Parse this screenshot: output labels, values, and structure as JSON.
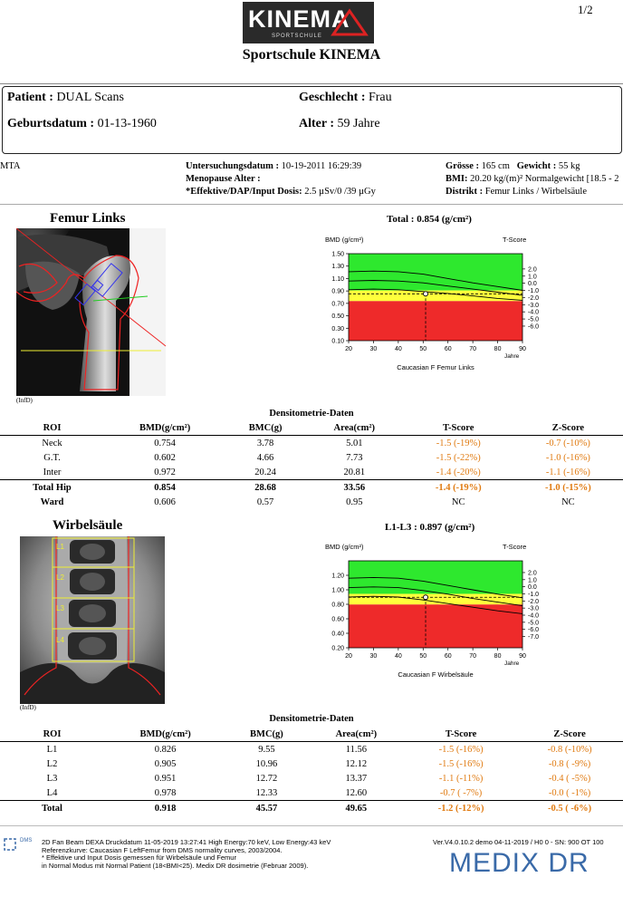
{
  "header": {
    "logo_text": "KINEMA",
    "logo_sub": "SPORTSCHULE",
    "page_num": "1/2",
    "title": "Sportschule KINEMA"
  },
  "patient": {
    "name_label": "Patient :",
    "name_value": "DUAL Scans",
    "sex_label": "Geschlecht :",
    "sex_value": "Frau",
    "dob_label": "Geburtsdatum :",
    "dob_value": "01-13-1960",
    "age_label": "Alter :",
    "age_value": "59 Jahre"
  },
  "exam": {
    "operator": "MTA",
    "date_label": "Untersuchungsdatum :",
    "date_value": "10-19-2011 16:29:39",
    "menopause_label": "Menopause Alter :",
    "dose_label": "*Effektive/DAP/Input Dosis:",
    "dose_value": "2.5 µSv/0 /39 µGy",
    "height_label": "Grösse :",
    "height_value": "165 cm",
    "weight_label": "Gewicht :",
    "weight_value": "55 kg",
    "bmi_label": "BMI:",
    "bmi_value": "20.20 kg/(m)² Normalgewicht [18.5 - 2",
    "district_label": "Distrikt :",
    "district_value": "Femur Links / Wirbelsäule"
  },
  "femur": {
    "section_title": "Femur Links",
    "image_label": "(InfD)",
    "total_label": "Total :",
    "total_value": "0.854 (g/cm²)",
    "table_title": "Densitometrie-Daten",
    "columns": [
      "ROI",
      "BMD(g/cm²)",
      "BMC(g)",
      "Area(cm²)",
      "T-Score",
      "Z-Score"
    ],
    "rows": [
      [
        "Neck",
        "0.754",
        "3.78",
        "5.01",
        "-1.5 (-19%)",
        "-0.7 (-10%)"
      ],
      [
        "G.T.",
        "0.602",
        "4.66",
        "7.73",
        "-1.5 (-22%)",
        "-1.0 (-16%)"
      ],
      [
        "Inter",
        "0.972",
        "20.24",
        "20.81",
        "-1.4 (-20%)",
        "-1.1 (-16%)"
      ]
    ],
    "total_row": [
      "Total Hip",
      "0.854",
      "28.68",
      "33.56",
      "-1.4 (-19%)",
      "-1.0 (-15%)"
    ],
    "ward_row": [
      "Ward",
      "0.606",
      "0.57",
      "0.95",
      "NC",
      "NC"
    ]
  },
  "spine": {
    "section_title": "Wirbelsäule",
    "image_label": "(InfD)",
    "vertebrae": [
      "L1",
      "L2",
      "L3",
      "L4"
    ],
    "total_label": "L1-L3 :",
    "total_value": "0.897 (g/cm²)",
    "table_title": "Densitometrie-Daten",
    "columns": [
      "ROI",
      "BMD(g/cm²)",
      "BMC(g)",
      "Area(cm²)",
      "T-Score",
      "Z-Score"
    ],
    "rows": [
      [
        "L1",
        "0.826",
        "9.55",
        "11.56",
        "-1.5 (-16%)",
        "-0.8 (-10%)"
      ],
      [
        "L2",
        "0.905",
        "10.96",
        "12.12",
        "-1.5 (-16%)",
        "-0.8 ( -9%)"
      ],
      [
        "L3",
        "0.951",
        "12.72",
        "13.37",
        "-1.1 (-11%)",
        "-0.4 ( -5%)"
      ],
      [
        "L4",
        "0.978",
        "12.33",
        "12.60",
        "-0.7 ( -7%)",
        "-0.0 ( -1%)"
      ]
    ],
    "total_row": [
      "Total",
      "0.918",
      "45.57",
      "49.65",
      "-1.2 (-12%)",
      "-0.5 ( -6%)"
    ]
  },
  "chart_data": [
    {
      "type": "area",
      "title": "Total : 0.854 (g/cm²)",
      "ylabel": "BMD (g/cm²)",
      "y2label": "T-Score",
      "xlabel": "Jahre",
      "caption": "Caucasian F Femur Links",
      "x_ticks": [
        20,
        30,
        40,
        50,
        60,
        70,
        80,
        90
      ],
      "y_ticks": [
        "1.50",
        "1.30",
        "1.10",
        "0.90",
        "0.70",
        "0.50",
        "0.30",
        "0.10"
      ],
      "ylim": [
        0.1,
        1.5
      ],
      "xlim": [
        20,
        90
      ],
      "t_ticks": [
        "2.0",
        "1.0",
        "0.0",
        "-1.0",
        "-2.0",
        "-3.0",
        "-4.0",
        "-5.0",
        "-6.0"
      ],
      "t_values": [
        2,
        1,
        0,
        -1,
        -2,
        -3,
        -4,
        -5,
        -6
      ],
      "t_zero_bmd": 1.024,
      "t_sd": 0.115,
      "zone_green_min": 0.909,
      "zone_yellow_min": 0.737,
      "patient_point": {
        "x": 51,
        "y": 0.854
      },
      "curves": {
        "x": [
          20,
          30,
          40,
          50,
          60,
          70,
          80,
          90
        ],
        "upper": [
          1.21,
          1.22,
          1.21,
          1.17,
          1.1,
          1.03,
          0.97,
          0.91
        ],
        "mean": [
          1.06,
          1.07,
          1.06,
          1.03,
          0.98,
          0.93,
          0.88,
          0.83
        ],
        "lower": [
          0.92,
          0.93,
          0.92,
          0.89,
          0.86,
          0.82,
          0.78,
          0.75
        ]
      },
      "colors": {
        "green": "#2ee82e",
        "yellow": "#ffff3c",
        "red": "#ee2a2a"
      }
    },
    {
      "type": "area",
      "title": "L1-L3 : 0.897 (g/cm²)",
      "ylabel": "BMD (g/cm²)",
      "y2label": "T-Score",
      "xlabel": "Jahre",
      "caption": "Caucasian F Wirbelsäule",
      "x_ticks": [
        20,
        30,
        40,
        50,
        60,
        70,
        80,
        90
      ],
      "y_ticks": [
        "1.20",
        "1.00",
        "0.80",
        "0.60",
        "0.40",
        "0.20"
      ],
      "ylim": [
        0.2,
        1.4
      ],
      "xlim": [
        20,
        90
      ],
      "t_ticks": [
        "2.0",
        "1.0",
        "0.0",
        "-1.0",
        "-2.0",
        "-3.0",
        "-4.0",
        "-5.0",
        "-6.0",
        "-7.0"
      ],
      "t_values": [
        2,
        1,
        0,
        -1,
        -2,
        -3,
        -4,
        -5,
        -6,
        -7
      ],
      "t_zero_bmd": 1.042,
      "t_sd": 0.098,
      "zone_green_min": 0.944,
      "zone_yellow_min": 0.797,
      "patient_point": {
        "x": 51,
        "y": 0.897
      },
      "curves": {
        "x": [
          20,
          30,
          40,
          50,
          60,
          70,
          80,
          90
        ],
        "upper": [
          1.16,
          1.17,
          1.16,
          1.12,
          1.06,
          1.0,
          0.94,
          0.89
        ],
        "mean": [
          1.03,
          1.04,
          1.03,
          0.99,
          0.94,
          0.88,
          0.83,
          0.78
        ],
        "lower": [
          0.9,
          0.91,
          0.9,
          0.86,
          0.81,
          0.76,
          0.71,
          0.67
        ]
      },
      "colors": {
        "green": "#2ee82e",
        "yellow": "#ffff3c",
        "red": "#ee2a2a"
      }
    }
  ],
  "footer": {
    "dms_badge": "DMS",
    "line1": "2D Fan Beam DEXA Druckdatum   11-05-2019 13:27:41 High Energy:70 keV, Low Energy:43 keV",
    "line2": "Referenzkurve: Caucasian F LeftFemur from DMS normality curves, 2003/2004.",
    "line3": "* Effektive und Input Dosis gemessen für Wirbelsäule und Femur",
    "line4": "in Normal Modus mit Normal Patient (18<BMI<25). Medix DR dosimetrie (Februar 2009).",
    "version": "Ver.V4.0.10.2 demo 04-11-2019 / H0 0 - SN: 900 OT 100",
    "brand": "MEDIX DR"
  }
}
